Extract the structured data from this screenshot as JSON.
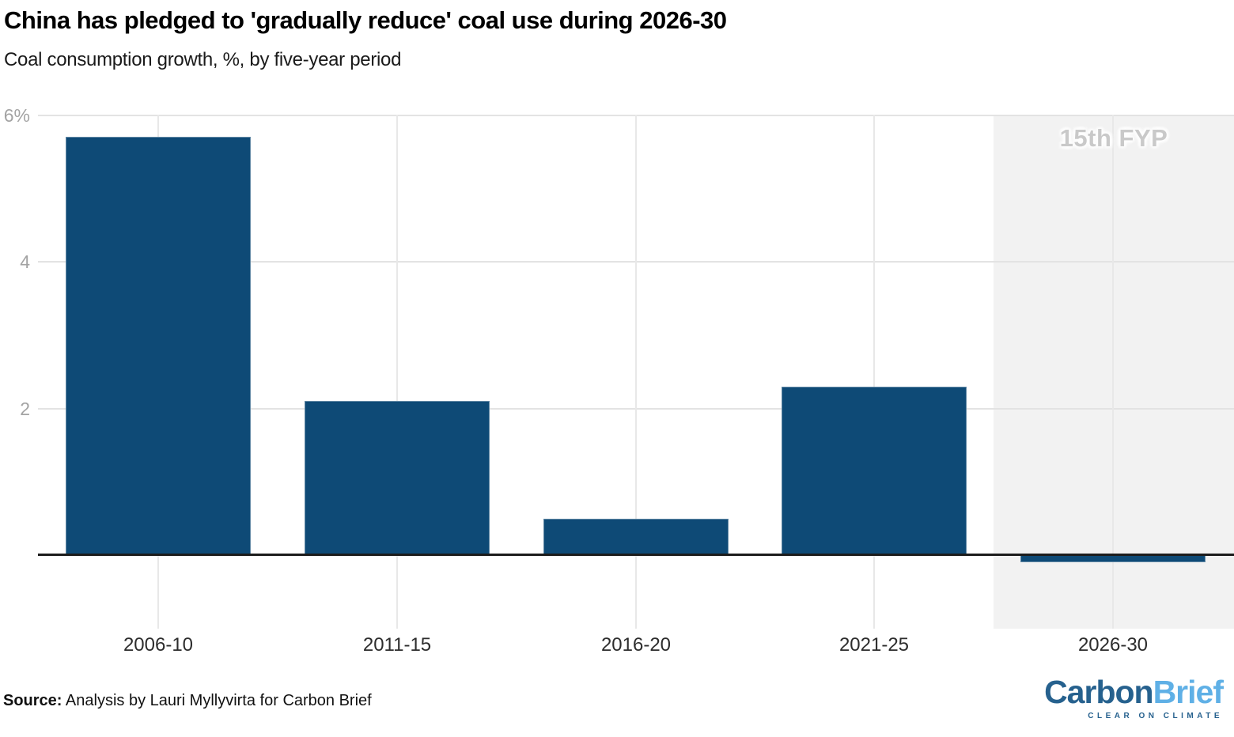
{
  "header": {
    "title": "China has pledged to 'gradually reduce' coal use during 2026-30",
    "subtitle": "Coal consumption growth, %, by five-year period"
  },
  "chart_data": {
    "type": "bar",
    "title": "China has pledged to 'gradually reduce' coal use during 2026-30",
    "subtitle": "Coal consumption growth, %, by five-year period",
    "categories": [
      "2006-10",
      "2011-15",
      "2016-20",
      "2021-25",
      "2026-30"
    ],
    "values": [
      5.7,
      2.1,
      0.5,
      2.3,
      -0.1
    ],
    "xlabel": "",
    "ylabel": "Coal consumption growth, %",
    "ylim": [
      -1,
      6
    ],
    "yticks": [
      {
        "label": "6%",
        "value": 6
      },
      {
        "label": "4",
        "value": 4
      },
      {
        "label": "2",
        "value": 2
      }
    ],
    "grid": true,
    "legend": "none",
    "annotation": "15th FYP",
    "highlight_band_category": "2026-30",
    "bar_color": "#0e4a76",
    "band_color": "#f2f2f2"
  },
  "footer": {
    "source_label": "Source:",
    "source_text": " Analysis by Lauri Myllyvirta for Carbon Brief",
    "logo": {
      "part1": "Carbon",
      "part2": "Brief",
      "tagline": "CLEAR ON CLIMATE"
    }
  },
  "colors": {
    "bar": "#0e4a76",
    "band": "#f2f2f2",
    "gridline": "#e3e3e3",
    "axis": "#1c1c1c",
    "ytick_text": "#a3a3a3",
    "xtick_text": "#2d2d2d",
    "annotation_text": "#c9c9c9",
    "logo_dark_blue": "#26618e",
    "logo_light_blue": "#5fb0e6"
  }
}
